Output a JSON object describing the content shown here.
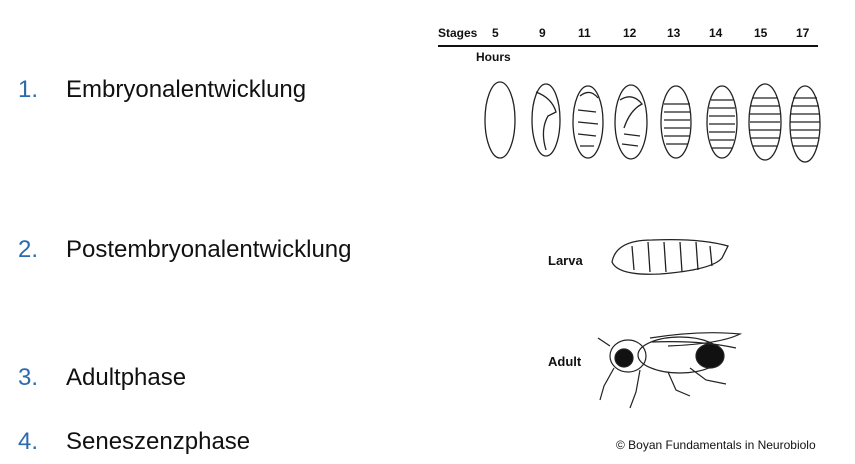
{
  "list": [
    {
      "num": "1.",
      "text": "Embryonalentwicklung"
    },
    {
      "num": "2.",
      "text": "Postembryonalentwicklung"
    },
    {
      "num": "3.",
      "text": "Adultphase"
    },
    {
      "num": "4.",
      "text": "Seneszenzphase"
    }
  ],
  "figure": {
    "stages_label": "Stages",
    "stages": [
      "5",
      "9",
      "11",
      "12",
      "13",
      "14",
      "15",
      "17"
    ],
    "hours_label": "Hours",
    "larva_label": "Larva",
    "adult_label": "Adult"
  },
  "credit": "© Boyan Fundamentals in Neurobiolo",
  "colors": {
    "number": "#2a6ab0",
    "text": "#111111"
  }
}
